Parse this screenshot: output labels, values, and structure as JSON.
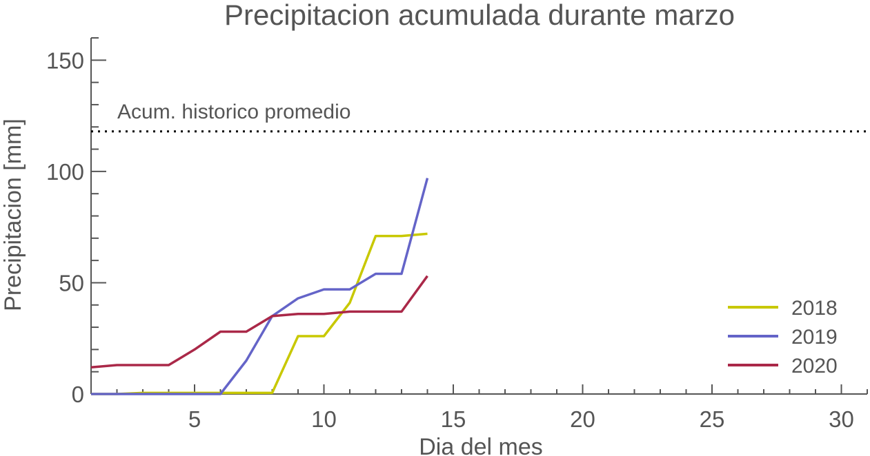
{
  "chart_data": {
    "type": "line",
    "title": "Precipitacion acumulada durante marzo",
    "xlabel": "Dia del mes",
    "ylabel": "Precipitacion [mm]",
    "xlim": [
      1,
      31
    ],
    "ylim": [
      0,
      160
    ],
    "x_ticks": [
      5,
      10,
      15,
      20,
      25,
      30
    ],
    "y_ticks": [
      0,
      50,
      100,
      150
    ],
    "grid": false,
    "legend_position": "bottom-right",
    "reference_line": {
      "label": "Acum. historico promedio",
      "value": 118,
      "style": "dotted",
      "color": "#000000"
    },
    "series": [
      {
        "name": "2018",
        "color": "#c8c800",
        "x": [
          1,
          2,
          3,
          4,
          5,
          6,
          7,
          8,
          9,
          10,
          11,
          12,
          13,
          14
        ],
        "values": [
          0,
          0,
          0.5,
          0.5,
          0.5,
          0.5,
          0.5,
          0.5,
          26,
          26,
          41,
          71,
          71,
          72
        ]
      },
      {
        "name": "2019",
        "color": "#6464c8",
        "x": [
          1,
          2,
          3,
          4,
          5,
          6,
          7,
          8,
          9,
          10,
          11,
          12,
          13,
          14
        ],
        "values": [
          0,
          0,
          0,
          0,
          0,
          0,
          15,
          35,
          43,
          47,
          47,
          54,
          54,
          97
        ]
      },
      {
        "name": "2020",
        "color": "#aa2848",
        "x": [
          1,
          2,
          3,
          4,
          5,
          6,
          7,
          8,
          9,
          10,
          11,
          12,
          13,
          14
        ],
        "values": [
          12,
          13,
          13,
          13,
          20,
          28,
          28,
          35,
          36,
          36,
          37,
          37,
          37,
          53
        ]
      }
    ]
  }
}
